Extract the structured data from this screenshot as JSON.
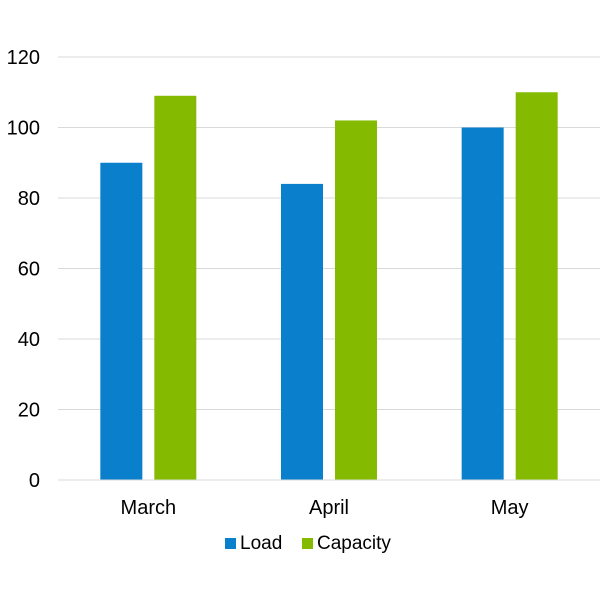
{
  "chart_data": {
    "type": "bar",
    "title": "",
    "xlabel": "",
    "ylabel": "",
    "categories": [
      "March",
      "April",
      "May"
    ],
    "series": [
      {
        "name": "Load",
        "values": [
          90,
          84,
          100
        ],
        "color": "#0a7fcb"
      },
      {
        "name": "Capacity",
        "values": [
          109,
          102,
          110
        ],
        "color": "#84bb00"
      }
    ],
    "ylim": [
      0,
      120
    ],
    "yticks": [
      0,
      20,
      40,
      60,
      80,
      100,
      120
    ],
    "grid": true,
    "legend_position": "bottom"
  }
}
